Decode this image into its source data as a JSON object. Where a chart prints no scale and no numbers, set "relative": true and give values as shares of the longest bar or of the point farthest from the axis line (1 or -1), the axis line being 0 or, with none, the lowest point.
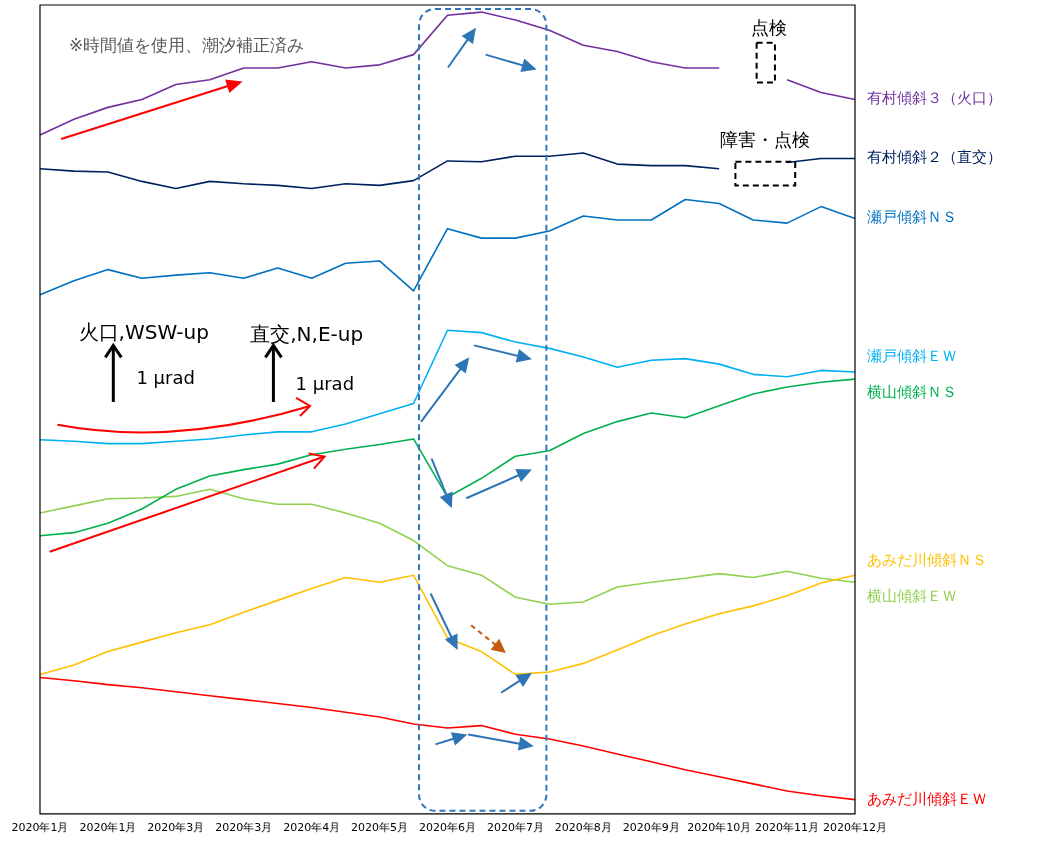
{
  "chart_data": {
    "type": "line",
    "relative": true,
    "marker": "none",
    "line_style": "solid",
    "categories": [
      "2020年1月",
      null,
      "2020年1月",
      null,
      "2020年3月",
      null,
      "2020年3月",
      null,
      "2020年4月",
      null,
      "2020年5月",
      null,
      "2020年6月",
      null,
      "2020年7月",
      null,
      "2020年8月",
      null,
      "2020年9月",
      null,
      "2020年10月",
      null,
      "2020年11月",
      null,
      "2020年12月"
    ],
    "series": [
      {
        "name": "有村傾斜３（火口）",
        "color": "#7030a0",
        "values": [
          0.844,
          0.864,
          0.879,
          0.889,
          0.908,
          0.914,
          0.929,
          0.929,
          0.937,
          0.929,
          0.933,
          0.946,
          0.996,
          1,
          0.99,
          0.977,
          0.958,
          0.95,
          0.937,
          0.929,
          0.929,
          null,
          0.914,
          0.898,
          0.889
        ]
      },
      {
        "name": "有村傾斜２（直交）",
        "color": "#002060",
        "values": [
          0.801,
          0.798,
          0.797,
          0.785,
          0.776,
          0.785,
          0.782,
          0.78,
          0.776,
          0.782,
          0.78,
          0.786,
          0.811,
          0.81,
          0.817,
          0.817,
          0.821,
          0.807,
          0.805,
          0.805,
          0.801,
          null,
          0.809,
          0.814,
          0.814
        ]
      },
      {
        "name": "瀬戸傾斜ＮＳ",
        "color": "#0070c0",
        "values": [
          0.641,
          0.659,
          0.673,
          0.662,
          0.666,
          0.669,
          0.662,
          0.675,
          0.662,
          0.681,
          0.684,
          0.646,
          0.725,
          0.713,
          0.713,
          0.722,
          0.741,
          0.736,
          0.736,
          0.762,
          0.757,
          0.736,
          0.732,
          0.753,
          0.738
        ]
      },
      {
        "name": "瀬戸傾斜ＥＷ",
        "color": "#00b0f0",
        "values": [
          0.457,
          0.455,
          0.452,
          0.452,
          0.455,
          0.458,
          0.463,
          0.467,
          0.467,
          0.477,
          0.49,
          0.503,
          0.596,
          0.593,
          0.581,
          0.573,
          0.562,
          0.549,
          0.558,
          0.56,
          0.553,
          0.54,
          0.537,
          0.545,
          0.543
        ]
      },
      {
        "name": "横山傾斜ＮＳ",
        "color": "#00b050",
        "values": [
          0.335,
          0.339,
          0.351,
          0.369,
          0.394,
          0.411,
          0.419,
          0.426,
          0.438,
          0.445,
          0.451,
          0.458,
          0.384,
          0.408,
          0.436,
          0.443,
          0.465,
          0.48,
          0.491,
          0.485,
          0.5,
          0.515,
          0.524,
          0.53,
          0.534
        ]
      },
      {
        "name": "あみだ川傾斜ＮＳ",
        "color": "#ffc000",
        "values": [
          0.159,
          0.171,
          0.188,
          0.2,
          0.212,
          0.222,
          0.238,
          0.253,
          0.268,
          0.282,
          0.276,
          0.285,
          0.205,
          0.188,
          0.159,
          0.162,
          0.173,
          0.19,
          0.208,
          0.223,
          0.236,
          0.246,
          0.259,
          0.275,
          0.285
        ]
      },
      {
        "name": "横山傾斜ＥＷ",
        "color": "#92d050",
        "values": [
          0.364,
          0.373,
          0.382,
          0.383,
          0.385,
          0.394,
          0.382,
          0.375,
          0.375,
          0.364,
          0.351,
          0.329,
          0.297,
          0.285,
          0.257,
          0.248,
          0.251,
          0.27,
          0.276,
          0.281,
          0.287,
          0.282,
          0.29,
          0.281,
          0.276
        ]
      },
      {
        "name": "あみだ川傾斜ＥＷ",
        "color": "#ff0000",
        "values": [
          0.155,
          0.151,
          0.146,
          0.142,
          0.137,
          0.132,
          0.127,
          0.122,
          0.117,
          0.111,
          0.105,
          0.096,
          0.091,
          0.094,
          0.083,
          0.077,
          0.068,
          0.058,
          0.048,
          0.038,
          0.029,
          0.02,
          0.011,
          0.005,
          0
        ]
      }
    ],
    "annotations": [
      "※時間値を使用、潮汐補正済み",
      "火口,WSW-up",
      "1 μrad",
      "直交,N,E-up",
      "1 μrad",
      "点検",
      "障害・点検"
    ]
  }
}
